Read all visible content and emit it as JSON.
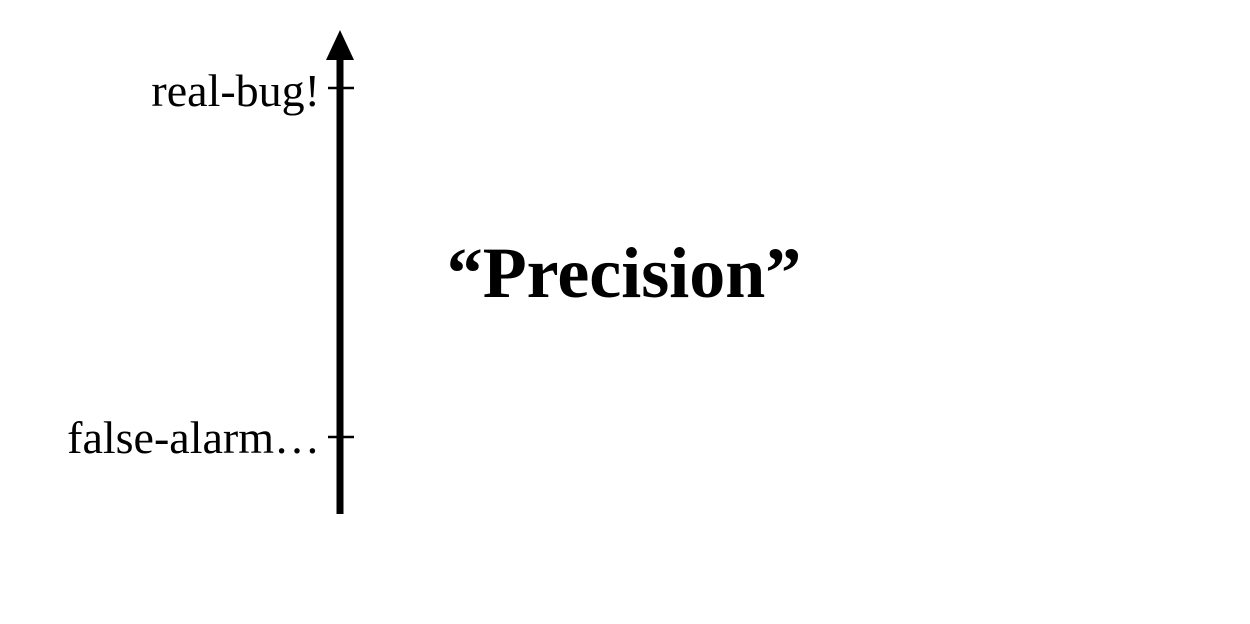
{
  "diagram": {
    "axis": {
      "ticks": [
        {
          "label": "real-bug!"
        },
        {
          "label": "false-alarm…"
        }
      ]
    },
    "title": "“Precision”"
  }
}
